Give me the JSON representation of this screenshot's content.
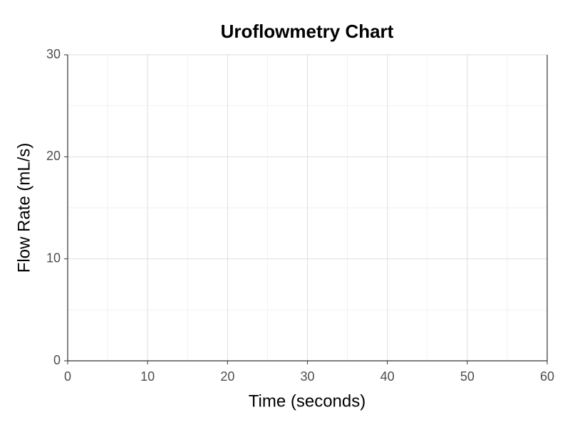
{
  "chart_data": {
    "type": "line",
    "title": "Uroflowmetry Chart",
    "x_label": "Time (seconds)",
    "y_label": "Flow Rate (mL/s)",
    "series": [],
    "xlim": [
      0,
      60
    ],
    "xticks": [
      0,
      10,
      20,
      30,
      40,
      50,
      60
    ],
    "xminorticks": [
      5,
      15,
      25,
      35,
      45,
      55
    ],
    "ylim": [
      0,
      30
    ],
    "yticks": [
      0,
      10,
      20,
      30
    ],
    "yminorticks": [
      5,
      15,
      25
    ],
    "grid": true
  }
}
